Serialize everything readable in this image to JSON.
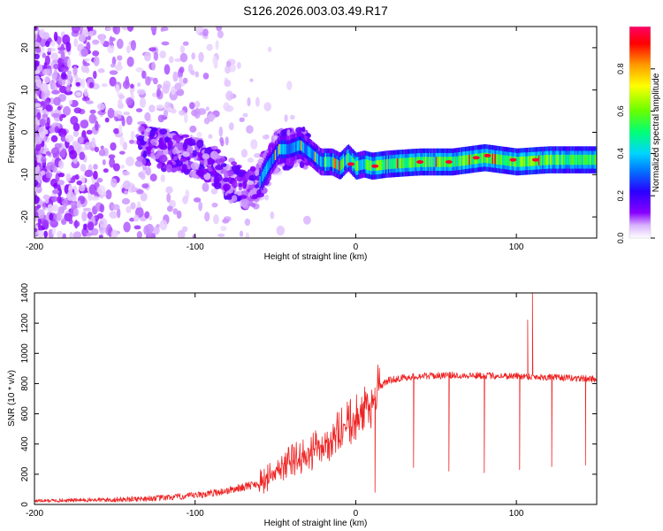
{
  "figure": {
    "title": "S126.2026.003.03.49.R17"
  },
  "chart_data": [
    {
      "type": "heatmap",
      "title": "S126.2026.003.03.49.R17",
      "xlabel": "Height of straight line (km)",
      "ylabel": "Frequency (Hz)",
      "xlim": [
        -200,
        150
      ],
      "ylim": [
        -25,
        25
      ],
      "x_ticks": [
        -200,
        -100,
        0,
        100
      ],
      "x_tick_labels": [
        "-200",
        "-100",
        "0",
        "100"
      ],
      "y_ticks": [
        -20,
        -10,
        0,
        10,
        20
      ],
      "y_tick_labels": [
        "-20",
        "-10",
        "0",
        "10",
        "20"
      ],
      "colorbar": {
        "label": "Normalized spectral amplitude",
        "range": [
          0,
          1
        ],
        "ticks": [
          0.0,
          0.2,
          0.4,
          0.6,
          0.8
        ],
        "tick_labels": [
          "0.0",
          "0.2",
          "0.4",
          "0.6",
          "0.8"
        ],
        "colormap": [
          "#ffffff",
          "#d9b3ff",
          "#8800ff",
          "#2a00ff",
          "#0077ff",
          "#00d5ff",
          "#00ff77",
          "#66ff00",
          "#ffff00",
          "#ff9900",
          "#ff0000",
          "#ff0066"
        ]
      },
      "ridge_frequency": {
        "x": [
          -130,
          -110,
          -90,
          -80,
          -70,
          -62,
          -55,
          -48,
          -42,
          -35,
          -28,
          -22,
          -15,
          -10,
          -5,
          0,
          5,
          10,
          20,
          40,
          60,
          80,
          100,
          120,
          150
        ],
        "y": [
          -3.0,
          -5.0,
          -7.0,
          -11.0,
          -13.0,
          -13.0,
          -8.0,
          -4.0,
          -4.0,
          -3.0,
          -5.0,
          -7.0,
          -7.0,
          -8.0,
          -6.0,
          -8.0,
          -7.5,
          -8.0,
          -7.5,
          -7.0,
          -7.0,
          -6.0,
          -7.0,
          -6.5,
          -6.5
        ]
      },
      "grid": false,
      "legend": "none"
    },
    {
      "type": "line",
      "xlabel": "Height of straight line (km)",
      "ylabel": "SNR (10 * v/v)",
      "xlim": [
        -200,
        150
      ],
      "ylim": [
        0,
        1400
      ],
      "x_ticks": [
        -200,
        -100,
        0,
        100
      ],
      "x_tick_labels": [
        "-200",
        "-100",
        "0",
        "100"
      ],
      "y_ticks": [
        0,
        200,
        400,
        600,
        800,
        1000,
        1200,
        1400
      ],
      "y_tick_labels": [
        "0",
        "200",
        "400",
        "600",
        "800",
        "1000",
        "1200",
        "1400"
      ],
      "color": "#ee2222",
      "series": [
        {
          "values_trend_x": [
            -200,
            -150,
            -120,
            -100,
            -80,
            -60,
            -50,
            -40,
            -30,
            -20,
            -10,
            0,
            10,
            15,
            20,
            25,
            30,
            40,
            60,
            100,
            150
          ],
          "values_trend_y": [
            20,
            25,
            35,
            50,
            80,
            130,
            200,
            280,
            320,
            380,
            470,
            560,
            660,
            780,
            820,
            830,
            840,
            850,
            855,
            850,
            830
          ]
        }
      ],
      "spikes_down": [
        {
          "x": 12,
          "y": 80
        },
        {
          "x": 36,
          "y": 245
        },
        {
          "x": 58,
          "y": 220
        },
        {
          "x": 80,
          "y": 210
        },
        {
          "x": 102,
          "y": 230
        },
        {
          "x": 122,
          "y": 250
        },
        {
          "x": 143,
          "y": 260
        }
      ],
      "spikes_up": [
        {
          "x": 110,
          "y": 1400
        },
        {
          "x": 107,
          "y": 1220
        }
      ],
      "grid": false,
      "legend": "none"
    }
  ]
}
